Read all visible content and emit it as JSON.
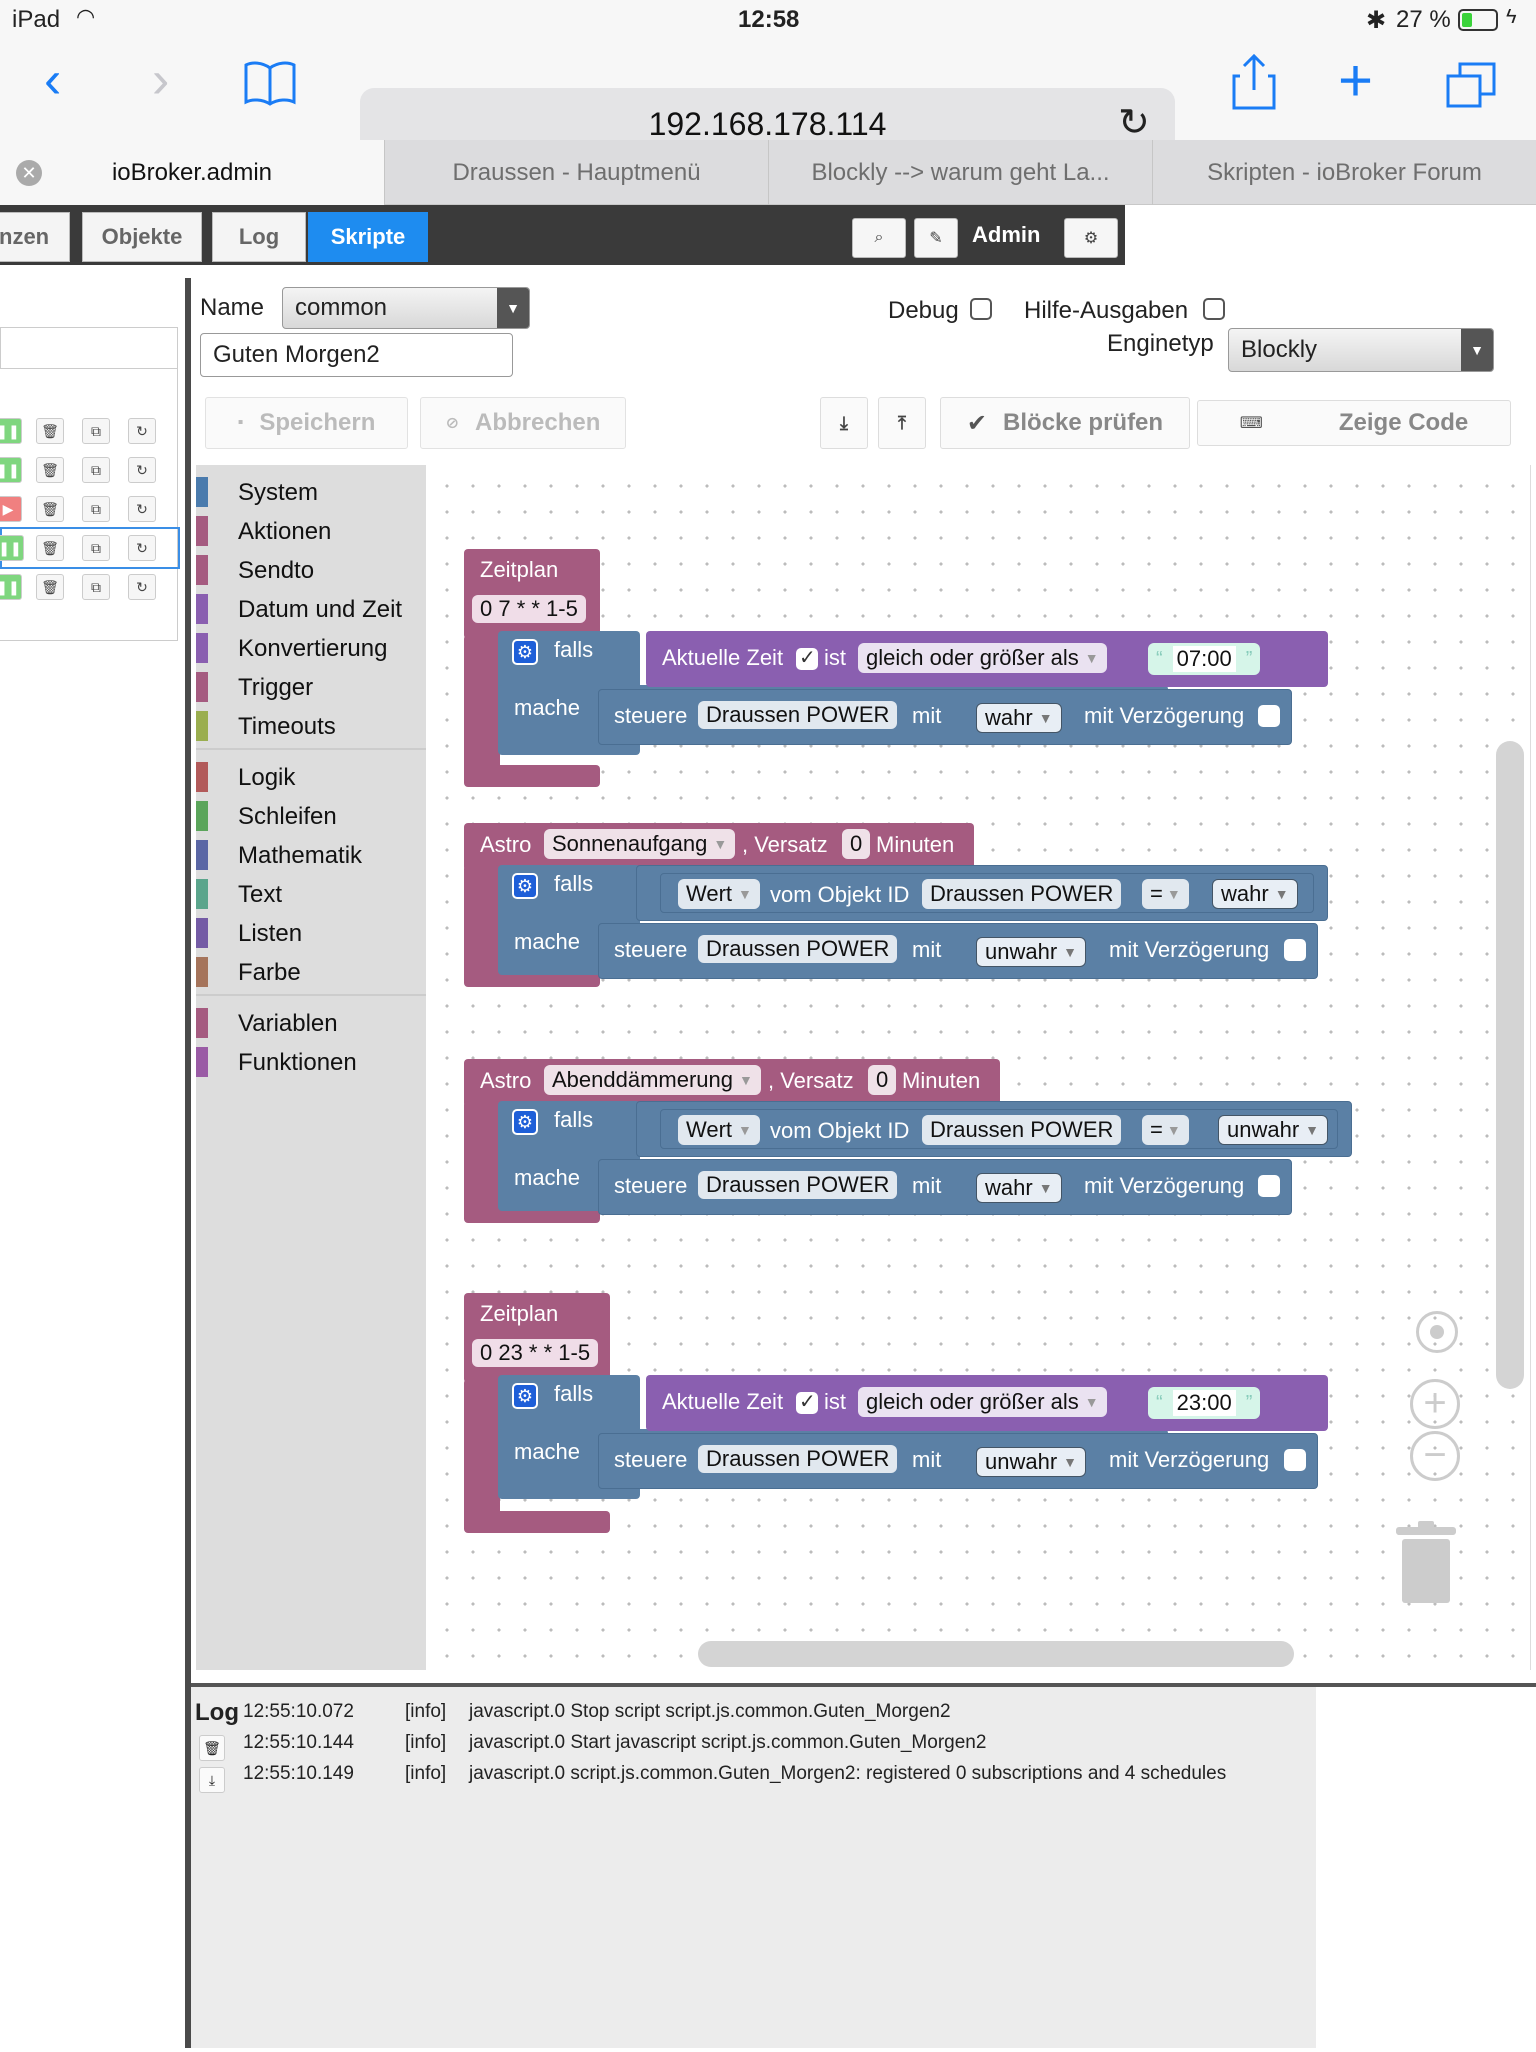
{
  "status_bar": {
    "device": "iPad",
    "time": "12:58",
    "battery": "27 %"
  },
  "browser": {
    "url": "192.168.178.114",
    "tabs": [
      {
        "label": "ioBroker.admin",
        "active": true
      },
      {
        "label": "Draussen - Hauptmenü",
        "active": false
      },
      {
        "label": "Blockly --> warum geht La...",
        "active": false
      },
      {
        "label": "Skripten - ioBroker Forum",
        "active": false
      }
    ]
  },
  "nav": {
    "tabs": [
      "nzen",
      "Objekte",
      "Log",
      "Skripte"
    ],
    "active_tab": "Skripte",
    "user": "Admin"
  },
  "form": {
    "name_label": "Name",
    "folder_value": "common",
    "script_name": "Guten Morgen2",
    "debug_label": "Debug",
    "hilfe_label": "Hilfe-Ausgaben",
    "engine_label": "Enginetyp",
    "engine_value": "Blockly",
    "save_label": "Speichern",
    "cancel_label": "Abbrechen",
    "check_label": "Blöcke prüfen",
    "code_label": "Zeige Code"
  },
  "toolbox": {
    "categories": [
      {
        "label": "System",
        "color": "#4a7bad"
      },
      {
        "label": "Aktionen",
        "color": "#a55b80"
      },
      {
        "label": "Sendto",
        "color": "#a55b80"
      },
      {
        "label": "Datum und Zeit",
        "color": "#8a5fb0"
      },
      {
        "label": "Konvertierung",
        "color": "#8a5fb0"
      },
      {
        "label": "Trigger",
        "color": "#a55b80"
      },
      {
        "label": "Timeouts",
        "color": "#9aae4f"
      },
      {
        "label": "Logik",
        "color": "#b25a5a"
      },
      {
        "label": "Schleifen",
        "color": "#5ba55b"
      },
      {
        "label": "Mathematik",
        "color": "#5b67a5"
      },
      {
        "label": "Text",
        "color": "#5ba58c"
      },
      {
        "label": "Listen",
        "color": "#745ba5"
      },
      {
        "label": "Farbe",
        "color": "#a5745b"
      },
      {
        "label": "Variablen",
        "color": "#a55b80"
      },
      {
        "label": "Funktionen",
        "color": "#9a5ba5"
      }
    ]
  },
  "blocks": {
    "b1": {
      "hat": "Zeitplan",
      "cron": "0 7 * * 1-5",
      "falls": "falls",
      "mache": "mache",
      "cond_prefix": "Aktuelle Zeit",
      "cond_ist": "ist",
      "cond_op": "gleich oder größer als",
      "cond_time": "07:00",
      "act_steuere": "steuere",
      "act_obj": "Draussen POWER",
      "act_mit": "mit",
      "act_val": "wahr",
      "act_delay": "mit Verzögerung"
    },
    "b2": {
      "hat_astro": "Astro",
      "event": "Sonnenaufgang",
      "versatz": ", Versatz",
      "offset": "0",
      "minuten": "Minuten",
      "falls": "falls",
      "mache": "mache",
      "cond_wert": "Wert",
      "cond_vom": "vom Objekt ID",
      "cond_obj": "Draussen POWER",
      "cond_op": "=",
      "cond_val": "wahr",
      "act_steuere": "steuere",
      "act_obj": "Draussen POWER",
      "act_mit": "mit",
      "act_val": "unwahr",
      "act_delay": "mit Verzögerung"
    },
    "b3": {
      "hat_astro": "Astro",
      "event": "Abenddämmerung",
      "versatz": ", Versatz",
      "offset": "0",
      "minuten": "Minuten",
      "falls": "falls",
      "mache": "mache",
      "cond_wert": "Wert",
      "cond_vom": "vom Objekt ID",
      "cond_obj": "Draussen POWER",
      "cond_op": "=",
      "cond_val": "unwahr",
      "act_steuere": "steuere",
      "act_obj": "Draussen POWER",
      "act_mit": "mit",
      "act_val": "wahr",
      "act_delay": "mit Verzögerung"
    },
    "b4": {
      "hat": "Zeitplan",
      "cron": "0 23 * * 1-5",
      "falls": "falls",
      "mache": "mache",
      "cond_prefix": "Aktuelle Zeit",
      "cond_ist": "ist",
      "cond_op": "gleich oder größer als",
      "cond_time": "23:00",
      "act_steuere": "steuere",
      "act_obj": "Draussen POWER",
      "act_mit": "mit",
      "act_val": "unwahr",
      "act_delay": "mit Verzögerung"
    }
  },
  "log": {
    "title": "Log",
    "entries": [
      {
        "time": "12:55:10.072",
        "level": "[info]",
        "msg": "javascript.0 Stop script script.js.common.Guten_Morgen2"
      },
      {
        "time": "12:55:10.144",
        "level": "[info]",
        "msg": "javascript.0 Start javascript script.js.common.Guten_Morgen2"
      },
      {
        "time": "12:55:10.149",
        "level": "[info]",
        "msg": "javascript.0 script.js.common.Guten_Morgen2: registered 0 subscriptions and 4 schedules"
      }
    ]
  }
}
